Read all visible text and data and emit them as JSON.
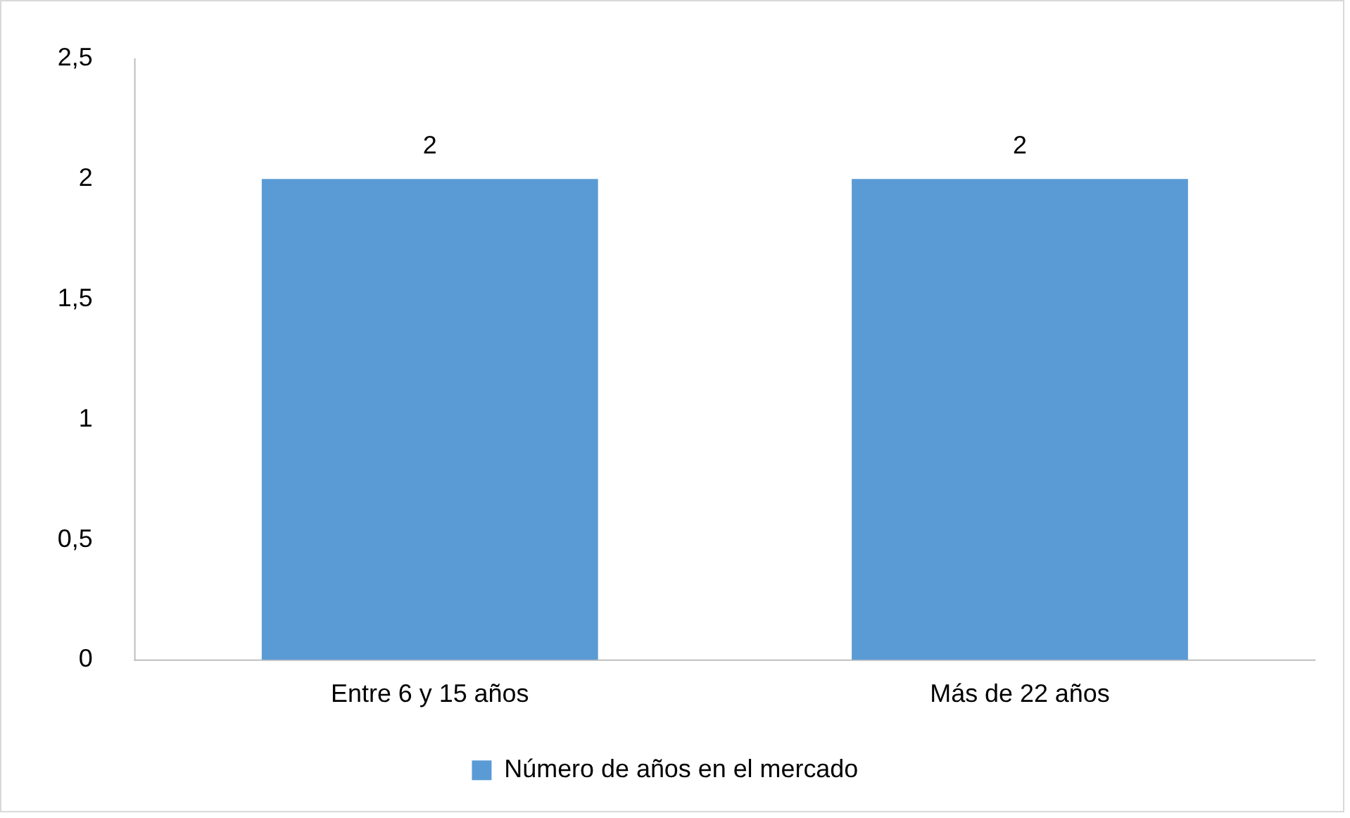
{
  "chart_data": {
    "type": "bar",
    "categories": [
      "Entre 6 y 15 años",
      "Más de 22 años"
    ],
    "series": [
      {
        "name": "Número de años en el mercado",
        "color": "#5b9bd5",
        "values": [
          2,
          2
        ]
      }
    ],
    "ylim": [
      0,
      2.5
    ],
    "yticks": [
      0,
      {
        "value": 0.5,
        "label": "0,5"
      },
      1,
      {
        "value": 1.5,
        "label": "1,5"
      },
      2,
      {
        "value": 2.5,
        "label": "2,5"
      }
    ],
    "grid": false,
    "legend": "bottom",
    "data_labels": true
  }
}
